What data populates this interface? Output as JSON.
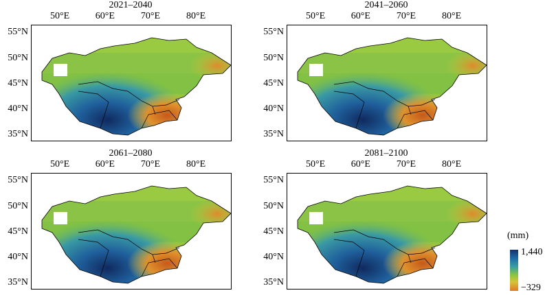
{
  "panels": [
    {
      "title": "2021–2040"
    },
    {
      "title": "2041–2060"
    },
    {
      "title": "2061–2080"
    },
    {
      "title": "2081–2100"
    }
  ],
  "x_ticks": [
    "50°E",
    "60°E",
    "70°E",
    "80°E"
  ],
  "y_ticks": [
    "55°N",
    "50°N",
    "45°N",
    "40°N",
    "35°N"
  ],
  "legend": {
    "unit": "(mm)",
    "max": "1,440",
    "min": "−329"
  },
  "colors": {
    "low": "#e07a28",
    "mid": "#8cc63f",
    "high": "#17306a"
  }
}
